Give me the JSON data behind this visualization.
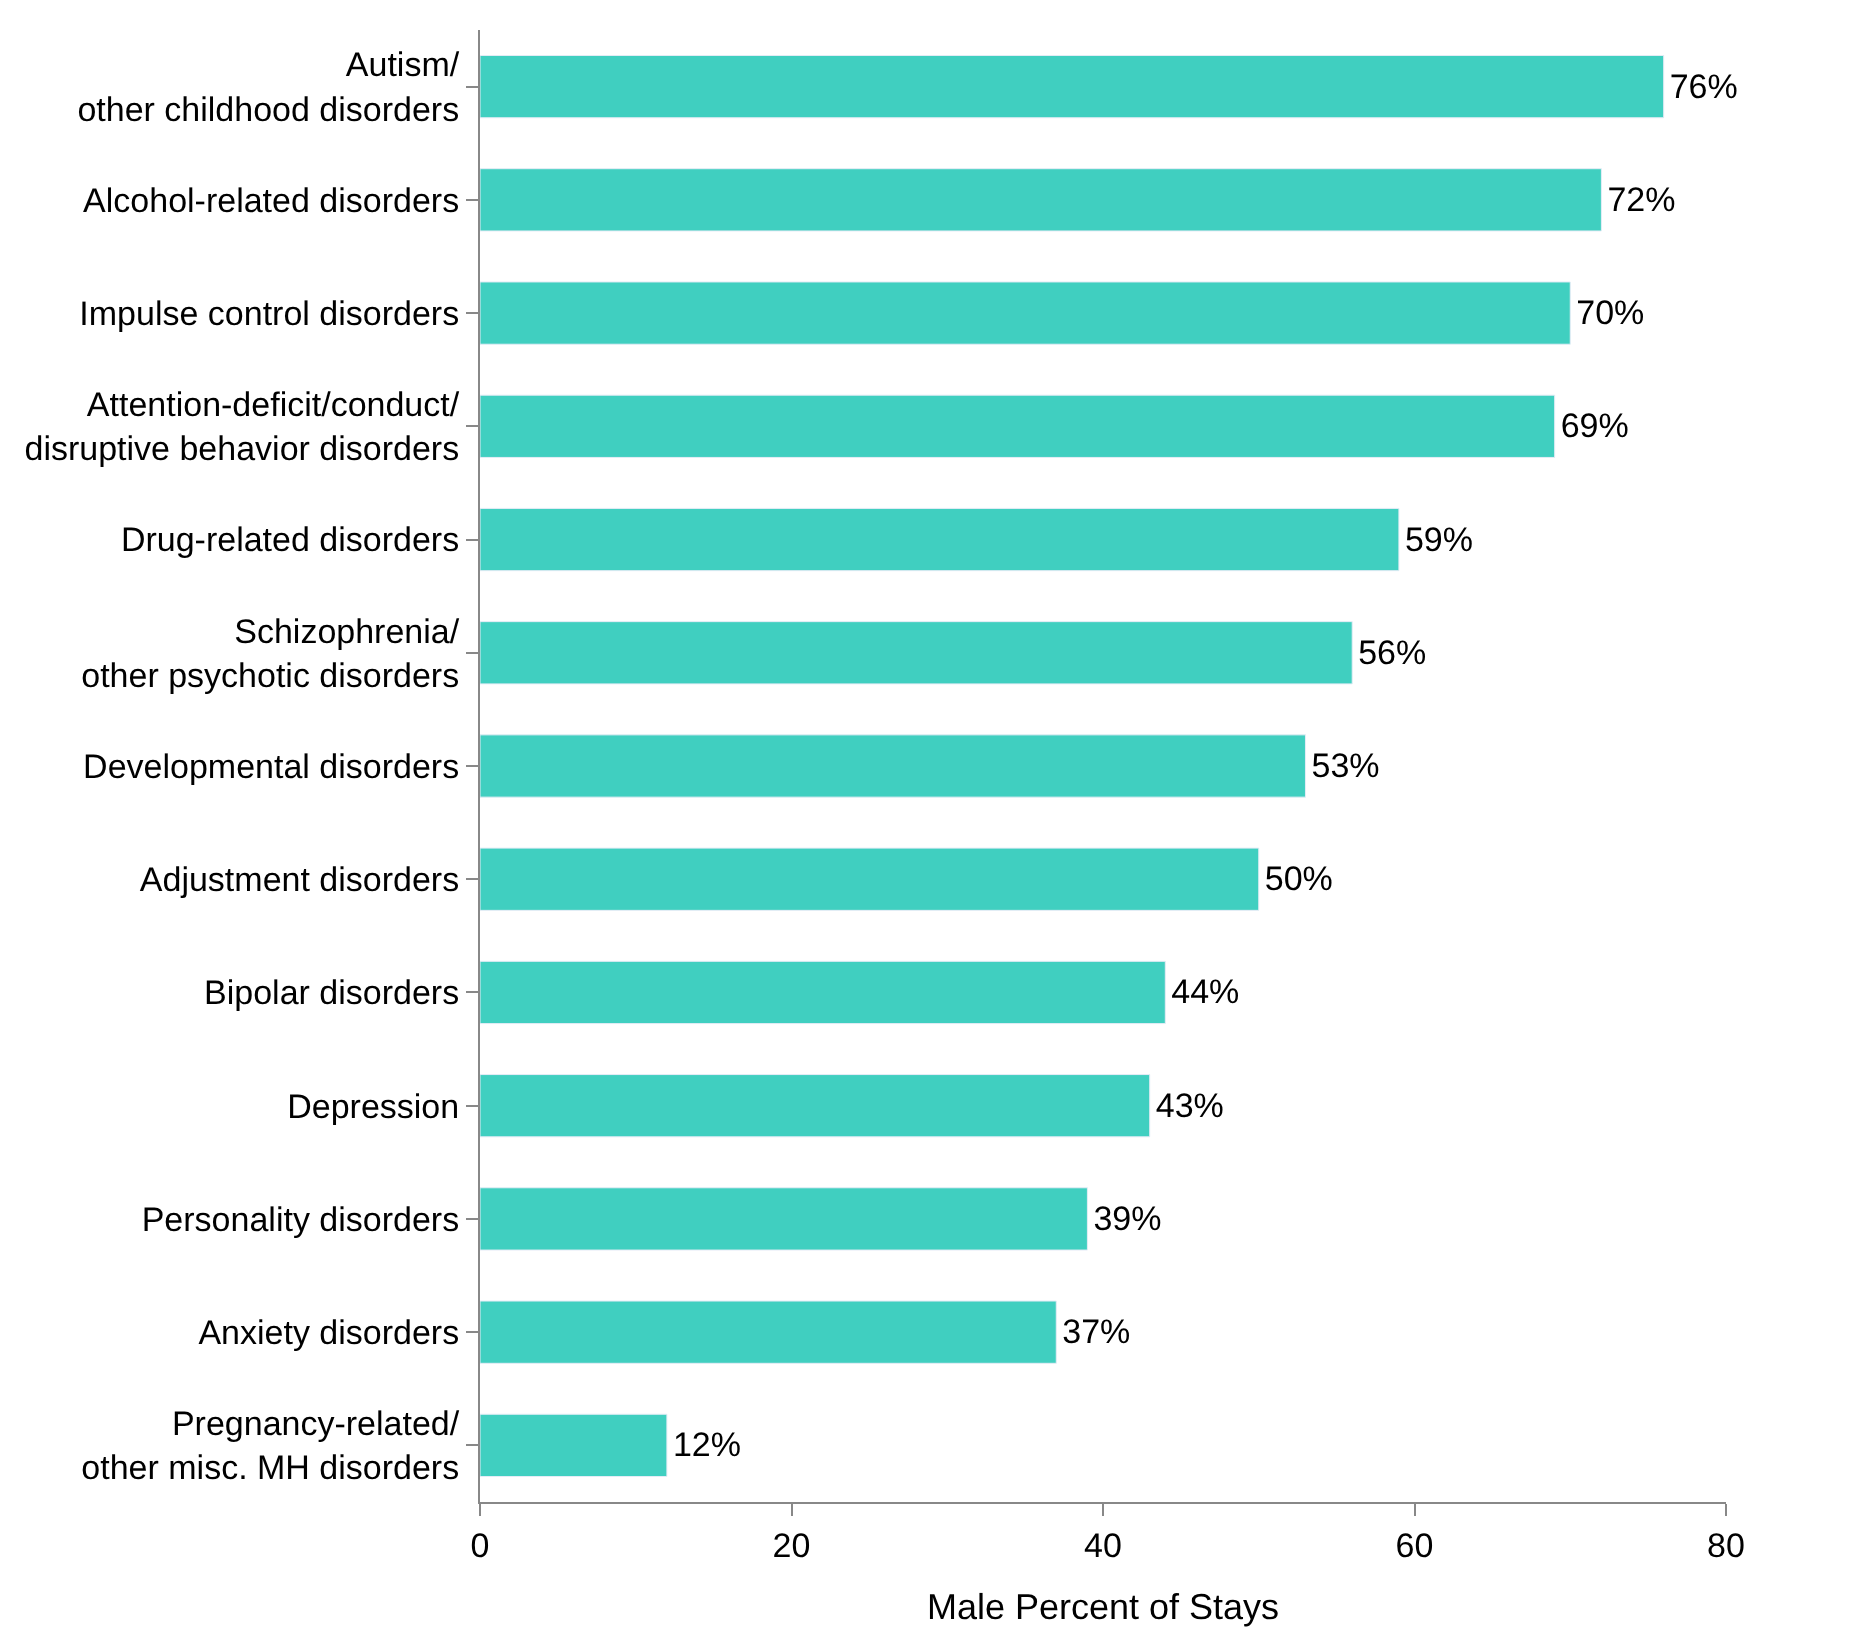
{
  "chart_data": {
    "type": "bar",
    "orientation": "horizontal",
    "xlabel": "Male Percent of Stays",
    "categories": [
      "Autism/\nother childhood disorders",
      "Alcohol-related disorders",
      "Impulse control disorders",
      "Attention-deficit/conduct/\ndisruptive behavior disorders",
      "Drug-related disorders",
      "Schizophrenia/\nother psychotic disorders",
      "Developmental disorders",
      "Adjustment disorders",
      "Bipolar disorders",
      "Depression",
      "Personality disorders",
      "Anxiety disorders",
      "Pregnancy-related/\nother misc. MH disorders"
    ],
    "values": [
      76,
      72,
      70,
      69,
      59,
      56,
      53,
      50,
      44,
      43,
      39,
      37,
      12
    ],
    "value_labels": [
      "76%",
      "72%",
      "70%",
      "69%",
      "59%",
      "56%",
      "53%",
      "50%",
      "44%",
      "43%",
      "39%",
      "37%",
      "12%"
    ],
    "color": "#40cfc0",
    "xlim": [
      0,
      80
    ],
    "xticks": [
      0,
      20,
      40,
      60,
      80
    ]
  }
}
